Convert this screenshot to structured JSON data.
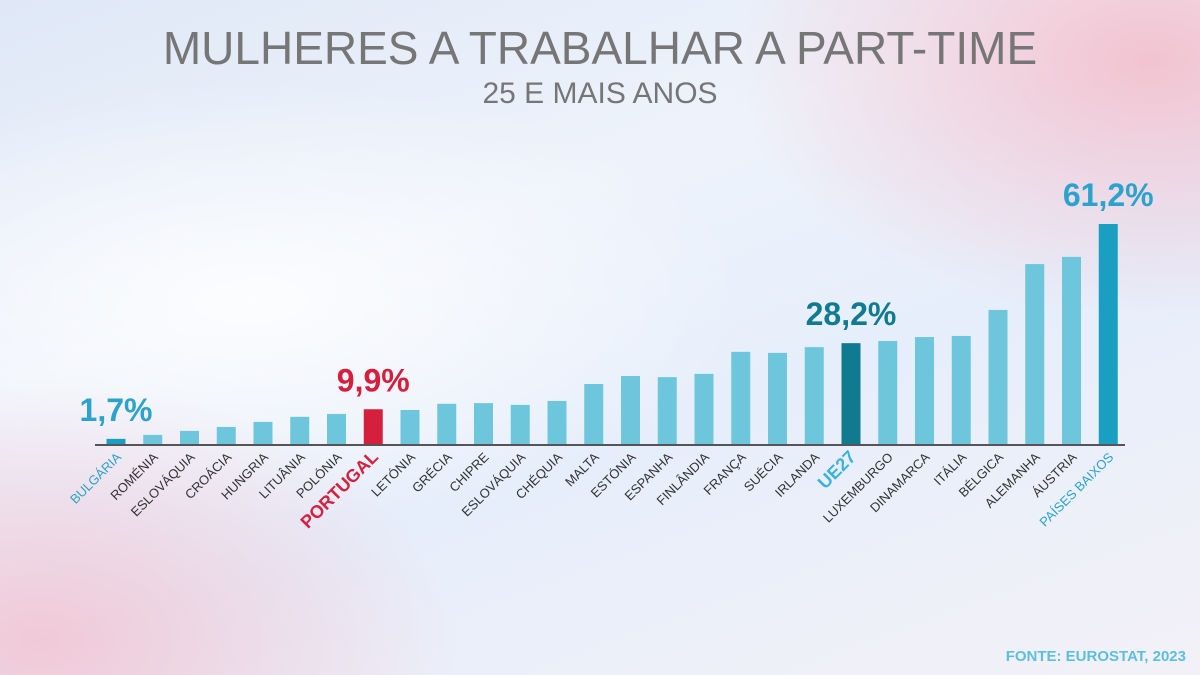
{
  "chart_data": {
    "type": "bar",
    "title": "MULHERES A TRABALHAR A PART-TIME",
    "subtitle": "25 E MAIS ANOS",
    "source": "FONTE: EUROSTAT, 2023",
    "categories": [
      "BULGÁRIA",
      "ROMÉNIA",
      "ESLOVÁQUIA",
      "CROÁCIA",
      "HUNGRIA",
      "LITUÂNIA",
      "POLÓNIA",
      "PORTUGAL",
      "LETÓNIA",
      "GRÉCIA",
      "CHIPRE",
      "ESLOVÁQUIA",
      "CHÉQUIA",
      "MALTA",
      "ESTÓNIA",
      "ESPANHA",
      "FINLÂNDIA",
      "FRANÇA",
      "SUÉCIA",
      "IRLANDA",
      "UE27",
      "LUXEMBURGO",
      "DINAMARCA",
      "ITÁLIA",
      "BÉLGICA",
      "ALEMANHA",
      "ÁUSTRIA",
      "PAÍSES BAIXOS"
    ],
    "values": [
      1.7,
      2.8,
      3.9,
      5.0,
      6.4,
      7.8,
      8.6,
      9.9,
      9.7,
      11.4,
      11.6,
      11.1,
      12.2,
      16.9,
      19.1,
      18.8,
      19.7,
      25.8,
      25.5,
      27.1,
      28.2,
      28.8,
      29.9,
      30.2,
      37.4,
      50.1,
      52.1,
      61.2
    ],
    "value_labels": [
      "1,7%",
      null,
      null,
      null,
      null,
      null,
      null,
      "9,9%",
      null,
      null,
      null,
      null,
      null,
      null,
      null,
      null,
      null,
      null,
      null,
      null,
      "28,2%",
      null,
      null,
      null,
      null,
      null,
      null,
      "61,2%"
    ],
    "colors": [
      "#1a9fc2",
      "#6ec6dc",
      "#6ec6dc",
      "#6ec6dc",
      "#6ec6dc",
      "#6ec6dc",
      "#6ec6dc",
      "#d61f3c",
      "#6ec6dc",
      "#6ec6dc",
      "#6ec6dc",
      "#6ec6dc",
      "#6ec6dc",
      "#6ec6dc",
      "#6ec6dc",
      "#6ec6dc",
      "#6ec6dc",
      "#6ec6dc",
      "#6ec6dc",
      "#6ec6dc",
      "#0f7a90",
      "#6ec6dc",
      "#6ec6dc",
      "#6ec6dc",
      "#6ec6dc",
      "#6ec6dc",
      "#6ec6dc",
      "#1a9fc2"
    ],
    "label_colors": [
      "#2ba3cc",
      "#333333",
      "#333333",
      "#333333",
      "#333333",
      "#333333",
      "#333333",
      "#d61f3c",
      "#333333",
      "#333333",
      "#333333",
      "#333333",
      "#333333",
      "#333333",
      "#333333",
      "#333333",
      "#333333",
      "#333333",
      "#333333",
      "#333333",
      "#3ab2dc",
      "#333333",
      "#333333",
      "#333333",
      "#333333",
      "#333333",
      "#333333",
      "#2ba3cc"
    ],
    "ylim": [
      0,
      61.2
    ]
  }
}
